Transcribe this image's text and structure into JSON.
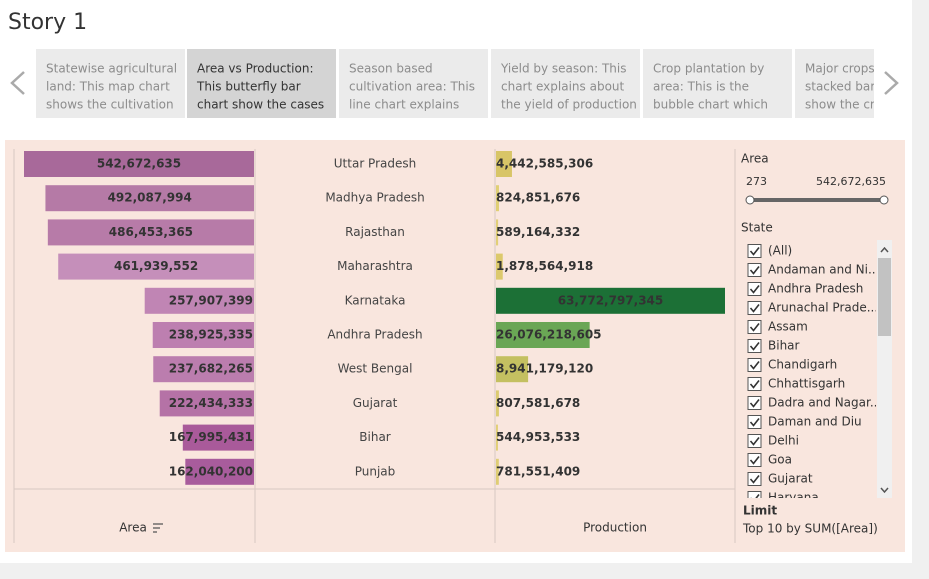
{
  "story_title": "Story 1",
  "tabs": [
    [
      "Statewise agricultural",
      "land: This map chart",
      "shows the cultivation"
    ],
    [
      "Area vs Production:",
      "This butterfly bar",
      "chart show the cases"
    ],
    [
      "Season based",
      "cultivation area: This",
      "line chart explains"
    ],
    [
      "Yield by season: This",
      "chart explains about",
      "the yield of production"
    ],
    [
      "Crop plantation by",
      "area: This is the",
      "bubble chart which"
    ],
    [
      "Major crops:",
      "stacked bar",
      "show the cro"
    ]
  ],
  "chart_data": {
    "type": "butterfly",
    "categories": [
      "Uttar Pradesh",
      "Madhya Pradesh",
      "Rajasthan",
      "Maharashtra",
      "Karnataka",
      "Andhra Pradesh",
      "West Bengal",
      "Gujarat",
      "Bihar",
      "Punjab"
    ],
    "series": [
      {
        "name": "Area",
        "values": [
          542672635,
          492087994,
          486453365,
          461939552,
          257907399,
          238925335,
          237682265,
          222434333,
          167995431,
          162040200
        ],
        "value_labels": [
          "542,672,635",
          "492,087,994",
          "486,453,365",
          "461,939,552",
          "257,907,399",
          "238,925,335",
          "237,682,265",
          "222,434,333",
          "167,995,431",
          "162,040,200"
        ],
        "colors": [
          "#a8699a",
          "#b57aa6",
          "#b77ba8",
          "#c58fba",
          "#c085b4",
          "#bd7fb0",
          "#bb7dae",
          "#b572a6",
          "#a95a9a",
          "#a85c9c"
        ],
        "label_colors": [
          "#ffffff",
          "#ffffff",
          "#ffffff",
          "#000000",
          "#ffffff",
          "#ffffff",
          "#ffffff",
          "#ffffff",
          "#000000",
          "#000000"
        ]
      },
      {
        "name": "Production",
        "values": [
          4442585306,
          824851676,
          589164332,
          1878564918,
          63772797345,
          26076218605,
          8941179120,
          807581678,
          544953533,
          781551409
        ],
        "value_labels": [
          "4,442,585,306",
          "824,851,676",
          "589,164,332",
          "1,878,564,918",
          "63,772,797,345",
          "26,076,218,605",
          "8,941,179,120",
          "807,581,678",
          "544,953,533",
          "781,551,409"
        ],
        "colors": [
          "#d8c567",
          "#e0cf75",
          "#e2cf77",
          "#dcc96c",
          "#1c7036",
          "#6aa655",
          "#c4c061",
          "#dccb70",
          "#e2cf77",
          "#dfcd74"
        ],
        "label_colors": [
          "#000000",
          "#000000",
          "#000000",
          "#000000",
          "#ffffff",
          "#000000",
          "#000000",
          "#000000",
          "#000000",
          "#000000"
        ]
      }
    ]
  },
  "filters": {
    "area": {
      "title": "Area",
      "min_label": "273",
      "max_label": "542,672,635"
    },
    "state": {
      "title": "State",
      "items": [
        "(All)",
        "Andaman and Ni...",
        "Andhra Pradesh",
        "Arunachal Prade...",
        "Assam",
        "Bihar",
        "Chandigarh",
        "Chhattisgarh",
        "Dadra and Nagar...",
        "Daman and Diu",
        "Delhi",
        "Goa",
        "Gujarat",
        "Haryana"
      ]
    },
    "limit": {
      "title": "Limit",
      "text": "Top 10 by SUM([Area])"
    }
  }
}
